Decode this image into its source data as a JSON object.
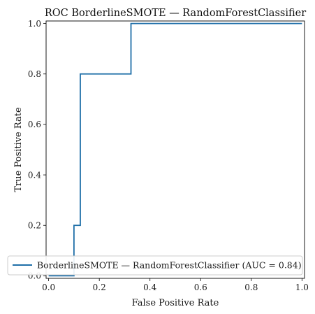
{
  "chart_data": {
    "type": "line",
    "title": "ROC BorderlineSMOTE — RandomForestClassifier",
    "xlabel": "False Positive Rate",
    "ylabel": "True Positive Rate",
    "xlim": [
      -0.01,
      1.01
    ],
    "ylim": [
      -0.01,
      1.01
    ],
    "grid": false,
    "legend_position": "lower-left",
    "xticks": [
      "0.0",
      "0.2",
      "0.4",
      "0.6",
      "0.8",
      "1.0"
    ],
    "yticks": [
      "0.0",
      "0.2",
      "0.4",
      "0.6",
      "0.8",
      "1.0"
    ],
    "series": [
      {
        "name": "BorderlineSMOTE — RandomForestClassifier (AUC = 0.84)",
        "color": "#1f6fa8",
        "x": [
          0.0,
          0.1,
          0.1,
          0.125,
          0.125,
          0.325,
          0.325,
          1.0
        ],
        "y": [
          0.0,
          0.0,
          0.2,
          0.2,
          0.8,
          0.8,
          1.0,
          1.0
        ]
      }
    ]
  }
}
